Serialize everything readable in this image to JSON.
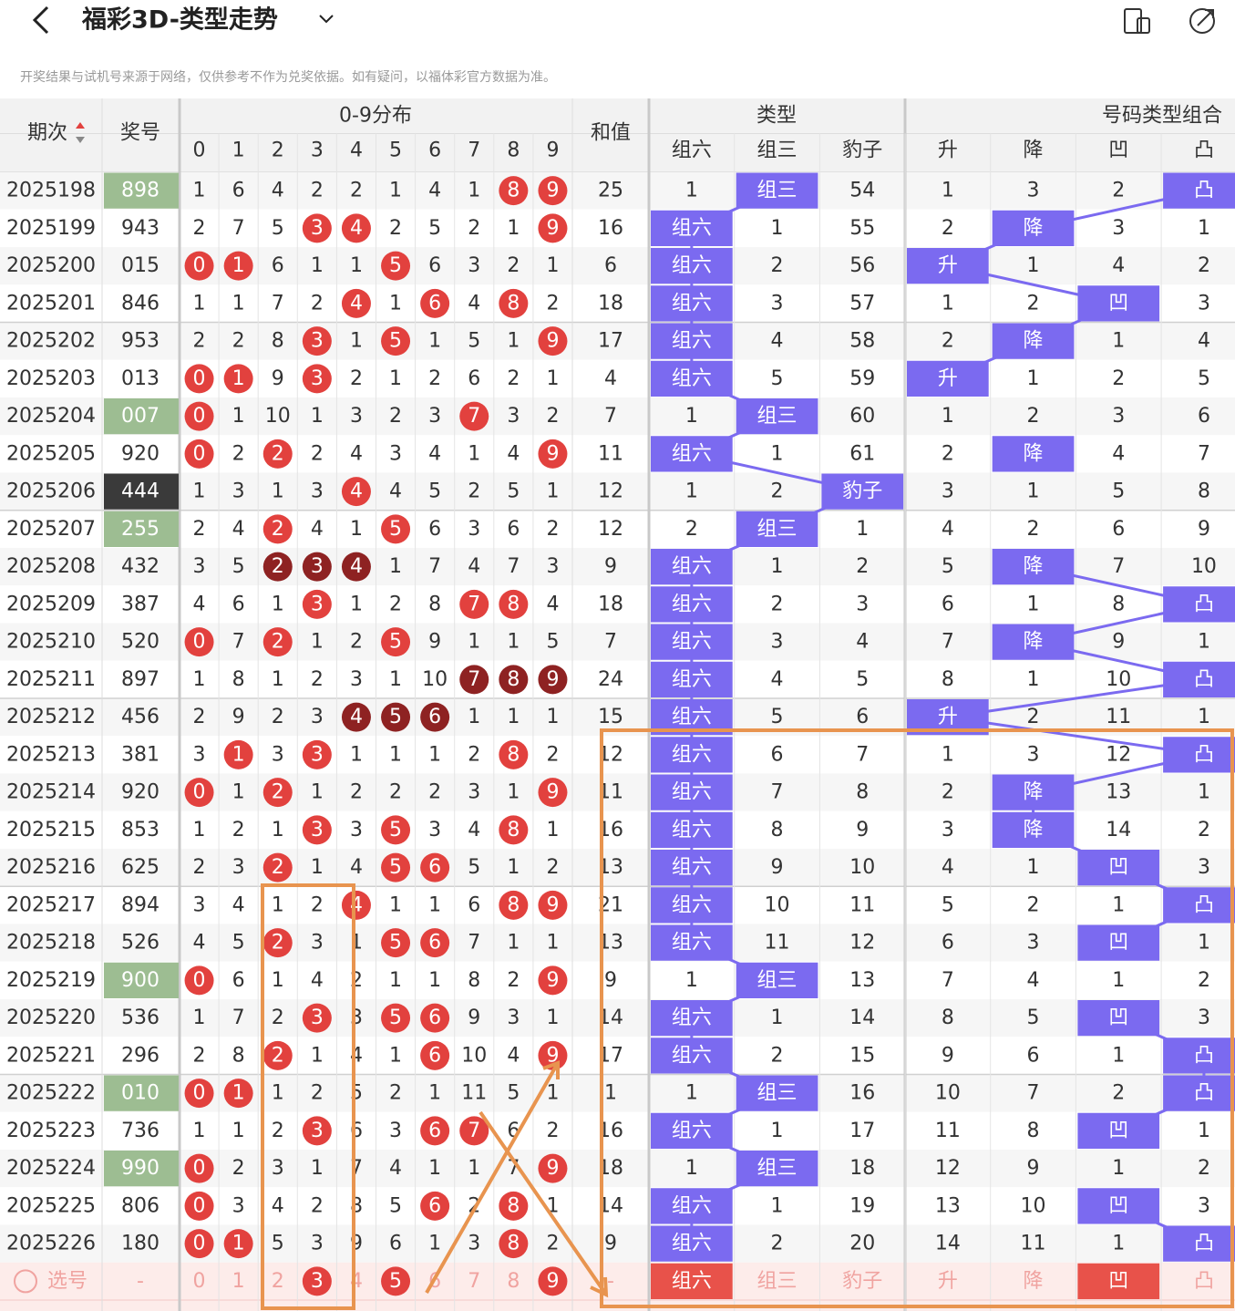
{
  "header": {
    "title": "福彩3D-类型走势",
    "notice": "开奖结果与试机号来源于网络，仅供参考不作为兑奖依据。如有疑问，以福体彩官方数据为准。"
  },
  "table": {
    "group_headers": {
      "digits": "0-9分布",
      "types": "类型",
      "combos": "号码类型组合"
    },
    "columns": {
      "period": "期次",
      "number": "奖号",
      "digits": [
        "0",
        "1",
        "2",
        "3",
        "4",
        "5",
        "6",
        "7",
        "8",
        "9"
      ],
      "sum": "和值",
      "types": [
        "组六",
        "组三",
        "豹子"
      ],
      "combos": [
        "升",
        "降",
        "凹",
        "凸"
      ]
    },
    "rows": [
      {
        "period": "2025198",
        "number": "898",
        "digits": [
          1,
          6,
          4,
          2,
          2,
          1,
          4,
          1,
          8,
          9
        ],
        "sum": 25,
        "types": [
          1,
          "组三",
          54
        ],
        "combos": [
          1,
          3,
          2,
          "凸"
        ]
      },
      {
        "period": "2025199",
        "number": "943",
        "digits": [
          2,
          7,
          5,
          3,
          4,
          2,
          5,
          2,
          1,
          9
        ],
        "sum": 16,
        "types": [
          "组六",
          1,
          55
        ],
        "combos": [
          2,
          "降",
          3,
          1
        ]
      },
      {
        "period": "2025200",
        "number": "015",
        "digits": [
          0,
          1,
          6,
          1,
          1,
          5,
          6,
          3,
          2,
          1
        ],
        "sum": 6,
        "types": [
          "组六",
          2,
          56
        ],
        "combos": [
          "升",
          1,
          4,
          2
        ]
      },
      {
        "period": "2025201",
        "number": "846",
        "digits": [
          1,
          1,
          7,
          2,
          4,
          1,
          6,
          4,
          8,
          2
        ],
        "sum": 18,
        "types": [
          "组六",
          3,
          57
        ],
        "combos": [
          1,
          2,
          "凹",
          3
        ]
      },
      {
        "period": "2025202",
        "number": "953",
        "digits": [
          2,
          2,
          8,
          3,
          1,
          5,
          1,
          5,
          1,
          9
        ],
        "sum": 17,
        "types": [
          "组六",
          4,
          58
        ],
        "combos": [
          2,
          "降",
          1,
          4
        ]
      },
      {
        "period": "2025203",
        "number": "013",
        "digits": [
          0,
          1,
          9,
          3,
          2,
          1,
          2,
          6,
          2,
          1
        ],
        "sum": 4,
        "types": [
          "组六",
          5,
          59
        ],
        "combos": [
          "升",
          1,
          2,
          5
        ]
      },
      {
        "period": "2025204",
        "number": "007",
        "digits": [
          0,
          1,
          10,
          1,
          3,
          2,
          3,
          7,
          3,
          2
        ],
        "sum": 7,
        "types": [
          1,
          "组三",
          60
        ],
        "combos": [
          1,
          2,
          3,
          6
        ]
      },
      {
        "period": "2025205",
        "number": "920",
        "digits": [
          0,
          2,
          2,
          2,
          4,
          3,
          4,
          1,
          4,
          9
        ],
        "sum": 11,
        "types": [
          "组六",
          1,
          61
        ],
        "combos": [
          2,
          "降",
          4,
          7
        ]
      },
      {
        "period": "2025206",
        "number": "444",
        "digits": [
          1,
          3,
          1,
          3,
          4,
          4,
          5,
          2,
          5,
          1
        ],
        "sum": 12,
        "types": [
          1,
          2,
          "豹子"
        ],
        "combos": [
          3,
          1,
          5,
          8
        ]
      },
      {
        "period": "2025207",
        "number": "255",
        "digits": [
          2,
          4,
          2,
          4,
          1,
          5,
          6,
          3,
          6,
          2
        ],
        "sum": 12,
        "types": [
          2,
          "组三",
          1
        ],
        "combos": [
          4,
          2,
          6,
          9
        ]
      },
      {
        "period": "2025208",
        "number": "432",
        "digits": [
          3,
          5,
          2,
          3,
          4,
          1,
          7,
          4,
          7,
          3
        ],
        "sum": 9,
        "types": [
          "组六",
          1,
          2
        ],
        "combos": [
          5,
          "降",
          7,
          10
        ]
      },
      {
        "period": "2025209",
        "number": "387",
        "digits": [
          4,
          6,
          1,
          3,
          1,
          2,
          8,
          7,
          8,
          4
        ],
        "sum": 18,
        "types": [
          "组六",
          2,
          3
        ],
        "combos": [
          6,
          1,
          8,
          "凸"
        ]
      },
      {
        "period": "2025210",
        "number": "520",
        "digits": [
          0,
          7,
          2,
          1,
          2,
          5,
          9,
          1,
          1,
          5
        ],
        "sum": 7,
        "types": [
          "组六",
          3,
          4
        ],
        "combos": [
          7,
          "降",
          9,
          1
        ]
      },
      {
        "period": "2025211",
        "number": "897",
        "digits": [
          1,
          8,
          1,
          2,
          3,
          1,
          10,
          7,
          8,
          9
        ],
        "sum": 24,
        "types": [
          "组六",
          4,
          5
        ],
        "combos": [
          8,
          1,
          10,
          "凸"
        ]
      },
      {
        "period": "2025212",
        "number": "456",
        "digits": [
          2,
          9,
          2,
          3,
          4,
          5,
          6,
          1,
          1,
          1
        ],
        "sum": 15,
        "types": [
          "组六",
          5,
          6
        ],
        "combos": [
          "升",
          2,
          11,
          1
        ]
      },
      {
        "period": "2025213",
        "number": "381",
        "digits": [
          3,
          1,
          3,
          3,
          1,
          1,
          1,
          2,
          8,
          2
        ],
        "sum": 12,
        "types": [
          "组六",
          6,
          7
        ],
        "combos": [
          1,
          3,
          12,
          "凸"
        ]
      },
      {
        "period": "2025214",
        "number": "920",
        "digits": [
          0,
          1,
          2,
          1,
          2,
          2,
          2,
          3,
          1,
          9
        ],
        "sum": 11,
        "types": [
          "组六",
          7,
          8
        ],
        "combos": [
          2,
          "降",
          13,
          1
        ]
      },
      {
        "period": "2025215",
        "number": "853",
        "digits": [
          1,
          2,
          1,
          3,
          3,
          5,
          3,
          4,
          8,
          1
        ],
        "sum": 16,
        "types": [
          "组六",
          8,
          9
        ],
        "combos": [
          3,
          "降",
          14,
          2
        ]
      },
      {
        "period": "2025216",
        "number": "625",
        "digits": [
          2,
          3,
          2,
          1,
          4,
          5,
          6,
          5,
          1,
          2
        ],
        "sum": 13,
        "types": [
          "组六",
          9,
          10
        ],
        "combos": [
          4,
          1,
          "凹",
          3
        ]
      },
      {
        "period": "2025217",
        "number": "894",
        "digits": [
          3,
          4,
          1,
          2,
          4,
          1,
          1,
          6,
          8,
          9
        ],
        "sum": 21,
        "types": [
          "组六",
          10,
          11
        ],
        "combos": [
          5,
          2,
          1,
          "凸"
        ]
      },
      {
        "period": "2025218",
        "number": "526",
        "digits": [
          4,
          5,
          2,
          3,
          1,
          5,
          6,
          7,
          1,
          1
        ],
        "sum": 13,
        "types": [
          "组六",
          11,
          12
        ],
        "combos": [
          6,
          3,
          "凹",
          1
        ]
      },
      {
        "period": "2025219",
        "number": "900",
        "digits": [
          0,
          6,
          1,
          4,
          2,
          1,
          1,
          8,
          2,
          9
        ],
        "sum": 9,
        "types": [
          1,
          "组三",
          13
        ],
        "combos": [
          7,
          4,
          1,
          2
        ]
      },
      {
        "period": "2025220",
        "number": "536",
        "digits": [
          1,
          7,
          2,
          3,
          3,
          5,
          6,
          9,
          3,
          1
        ],
        "sum": 14,
        "types": [
          "组六",
          1,
          14
        ],
        "combos": [
          8,
          5,
          "凹",
          3
        ]
      },
      {
        "period": "2025221",
        "number": "296",
        "digits": [
          2,
          8,
          2,
          1,
          4,
          1,
          6,
          10,
          4,
          9
        ],
        "sum": 17,
        "types": [
          "组六",
          2,
          15
        ],
        "combos": [
          9,
          6,
          1,
          "凸"
        ]
      },
      {
        "period": "2025222",
        "number": "010",
        "digits": [
          0,
          1,
          1,
          2,
          5,
          2,
          1,
          11,
          5,
          1
        ],
        "sum": 1,
        "types": [
          1,
          "组三",
          16
        ],
        "combos": [
          10,
          7,
          2,
          "凸"
        ]
      },
      {
        "period": "2025223",
        "number": "736",
        "digits": [
          1,
          1,
          2,
          3,
          6,
          3,
          6,
          7,
          6,
          2
        ],
        "sum": 16,
        "types": [
          "组六",
          1,
          17
        ],
        "combos": [
          11,
          8,
          "凹",
          1
        ]
      },
      {
        "period": "2025224",
        "number": "990",
        "digits": [
          0,
          2,
          3,
          1,
          7,
          4,
          1,
          1,
          7,
          9
        ],
        "sum": 18,
        "types": [
          1,
          "组三",
          18
        ],
        "combos": [
          12,
          9,
          1,
          2
        ]
      },
      {
        "period": "2025225",
        "number": "806",
        "digits": [
          0,
          3,
          4,
          2,
          8,
          5,
          6,
          2,
          8,
          1
        ],
        "sum": 14,
        "types": [
          "组六",
          1,
          19
        ],
        "combos": [
          13,
          10,
          "凹",
          3
        ]
      },
      {
        "period": "2025226",
        "number": "180",
        "digits": [
          0,
          1,
          5,
          3,
          9,
          6,
          1,
          3,
          8,
          2
        ],
        "sum": 9,
        "types": [
          "组六",
          2,
          20
        ],
        "combos": [
          14,
          11,
          1,
          "凸"
        ]
      }
    ],
    "footer": {
      "label": "选号",
      "number": "-",
      "digits": [
        0,
        1,
        2,
        3,
        4,
        5,
        6,
        7,
        8,
        9
      ],
      "digits_selected": [
        false,
        false,
        false,
        true,
        false,
        true,
        false,
        false,
        false,
        true
      ],
      "sum": "-",
      "types": [
        "组六",
        "组三",
        "豹子"
      ],
      "types_selected": [
        true,
        false,
        false
      ],
      "combos": [
        "升",
        "降",
        "凹",
        "凸"
      ],
      "combos_selected": [
        false,
        false,
        true,
        false
      ]
    }
  }
}
